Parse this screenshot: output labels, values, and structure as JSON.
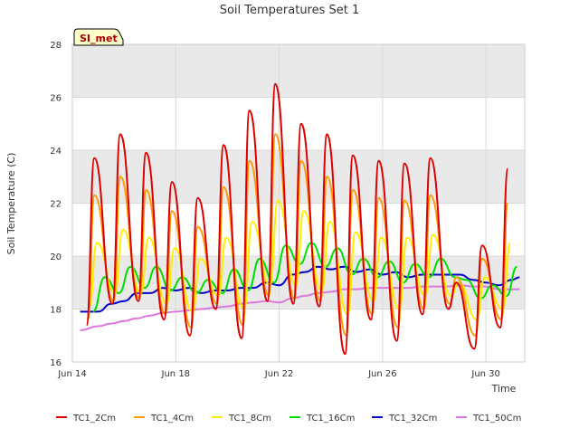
{
  "chart_data": {
    "type": "line",
    "title": "Soil Temperatures Set 1",
    "site_badge": "SI_met",
    "xlabel": "Time",
    "ylabel": "Soil Temperature (C)",
    "ylim": [
      16,
      28
    ],
    "xlim_days": [
      14,
      31.5
    ],
    "x_unit": "day of June",
    "y_ticks": [
      16,
      18,
      20,
      22,
      24,
      26,
      28
    ],
    "x_ticks": [
      {
        "day": 14,
        "label": "Jun 14"
      },
      {
        "day": 18,
        "label": "Jun 18"
      },
      {
        "day": 22,
        "label": "Jun 22"
      },
      {
        "day": 26,
        "label": "Jun 26"
      },
      {
        "day": 30,
        "label": "Jun 30"
      }
    ],
    "background": "alternating grey horizontal bands",
    "legend_position": "bottom",
    "colors": {
      "TC1_2Cm": "#dd0000",
      "TC1_4Cm": "#ff9900",
      "TC1_8Cm": "#ffee00",
      "TC1_16Cm": "#00dd00",
      "TC1_32Cm": "#0000cc",
      "TC1_50Cm": "#dd77dd"
    },
    "series": [
      {
        "name": "TC1_2Cm",
        "note": "daily maxima and minima (approx.)",
        "max": [
          {
            "x": 14.85,
            "y": 23.7
          },
          {
            "x": 15.85,
            "y": 24.6
          },
          {
            "x": 16.85,
            "y": 23.9
          },
          {
            "x": 17.85,
            "y": 22.8
          },
          {
            "x": 18.85,
            "y": 22.2
          },
          {
            "x": 19.85,
            "y": 24.2
          },
          {
            "x": 20.85,
            "y": 25.5
          },
          {
            "x": 21.85,
            "y": 26.5
          },
          {
            "x": 22.85,
            "y": 25.0
          },
          {
            "x": 23.85,
            "y": 24.6
          },
          {
            "x": 24.85,
            "y": 23.8
          },
          {
            "x": 25.85,
            "y": 23.6
          },
          {
            "x": 26.85,
            "y": 23.5
          },
          {
            "x": 27.85,
            "y": 23.7
          },
          {
            "x": 28.85,
            "y": 19.0
          },
          {
            "x": 29.85,
            "y": 20.4
          },
          {
            "x": 30.85,
            "y": 23.3
          }
        ],
        "min": [
          {
            "x": 14.55,
            "y": 17.4
          },
          {
            "x": 15.55,
            "y": 18.2
          },
          {
            "x": 16.55,
            "y": 18.3
          },
          {
            "x": 17.55,
            "y": 17.6
          },
          {
            "x": 18.55,
            "y": 17.0
          },
          {
            "x": 19.55,
            "y": 18.0
          },
          {
            "x": 20.55,
            "y": 16.9
          },
          {
            "x": 21.55,
            "y": 18.3
          },
          {
            "x": 22.55,
            "y": 18.2
          },
          {
            "x": 23.55,
            "y": 18.1
          },
          {
            "x": 24.55,
            "y": 16.3
          },
          {
            "x": 25.55,
            "y": 17.6
          },
          {
            "x": 26.55,
            "y": 16.8
          },
          {
            "x": 27.55,
            "y": 17.8
          },
          {
            "x": 28.55,
            "y": 18.0
          },
          {
            "x": 29.55,
            "y": 16.5
          },
          {
            "x": 30.55,
            "y": 17.3
          }
        ]
      },
      {
        "name": "TC1_4Cm",
        "note": "daily maxima and minima (approx.)",
        "max": [
          {
            "x": 14.85,
            "y": 22.3
          },
          {
            "x": 15.85,
            "y": 23.0
          },
          {
            "x": 16.85,
            "y": 22.5
          },
          {
            "x": 17.85,
            "y": 21.7
          },
          {
            "x": 18.85,
            "y": 21.1
          },
          {
            "x": 19.85,
            "y": 22.6
          },
          {
            "x": 20.85,
            "y": 23.6
          },
          {
            "x": 21.85,
            "y": 24.6
          },
          {
            "x": 22.85,
            "y": 23.6
          },
          {
            "x": 23.85,
            "y": 23.0
          },
          {
            "x": 24.85,
            "y": 22.5
          },
          {
            "x": 25.85,
            "y": 22.2
          },
          {
            "x": 26.85,
            "y": 22.1
          },
          {
            "x": 27.85,
            "y": 22.3
          },
          {
            "x": 28.85,
            "y": 19.2
          },
          {
            "x": 29.85,
            "y": 19.9
          },
          {
            "x": 30.85,
            "y": 22.0
          }
        ],
        "min": [
          {
            "x": 14.6,
            "y": 17.6
          },
          {
            "x": 15.6,
            "y": 18.3
          },
          {
            "x": 16.6,
            "y": 18.4
          },
          {
            "x": 17.6,
            "y": 17.8
          },
          {
            "x": 18.6,
            "y": 17.3
          },
          {
            "x": 19.6,
            "y": 18.2
          },
          {
            "x": 20.6,
            "y": 17.4
          },
          {
            "x": 21.6,
            "y": 18.5
          },
          {
            "x": 22.6,
            "y": 18.4
          },
          {
            "x": 23.6,
            "y": 18.3
          },
          {
            "x": 24.6,
            "y": 17.0
          },
          {
            "x": 25.6,
            "y": 17.8
          },
          {
            "x": 26.6,
            "y": 17.3
          },
          {
            "x": 27.6,
            "y": 18.0
          },
          {
            "x": 28.6,
            "y": 18.2
          },
          {
            "x": 29.6,
            "y": 17.0
          },
          {
            "x": 30.6,
            "y": 17.6
          }
        ]
      },
      {
        "name": "TC1_8Cm",
        "note": "daily maxima and minima (approx.)",
        "max": [
          {
            "x": 14.95,
            "y": 20.5
          },
          {
            "x": 15.95,
            "y": 21.0
          },
          {
            "x": 16.95,
            "y": 20.7
          },
          {
            "x": 17.95,
            "y": 20.3
          },
          {
            "x": 18.95,
            "y": 19.9
          },
          {
            "x": 19.95,
            "y": 20.7
          },
          {
            "x": 20.95,
            "y": 21.3
          },
          {
            "x": 21.95,
            "y": 22.1
          },
          {
            "x": 22.95,
            "y": 21.7
          },
          {
            "x": 23.95,
            "y": 21.3
          },
          {
            "x": 24.95,
            "y": 20.9
          },
          {
            "x": 25.95,
            "y": 20.7
          },
          {
            "x": 26.95,
            "y": 20.7
          },
          {
            "x": 27.95,
            "y": 20.8
          },
          {
            "x": 28.95,
            "y": 19.0
          },
          {
            "x": 29.95,
            "y": 19.2
          },
          {
            "x": 30.95,
            "y": 20.5
          }
        ],
        "min": [
          {
            "x": 14.65,
            "y": 18.1
          },
          {
            "x": 15.65,
            "y": 18.6
          },
          {
            "x": 16.65,
            "y": 18.6
          },
          {
            "x": 17.65,
            "y": 18.2
          },
          {
            "x": 18.65,
            "y": 17.9
          },
          {
            "x": 19.65,
            "y": 18.5
          },
          {
            "x": 20.65,
            "y": 18.0
          },
          {
            "x": 21.65,
            "y": 18.9
          },
          {
            "x": 22.65,
            "y": 18.9
          },
          {
            "x": 23.65,
            "y": 18.7
          },
          {
            "x": 24.65,
            "y": 17.8
          },
          {
            "x": 25.65,
            "y": 18.3
          },
          {
            "x": 26.65,
            "y": 18.0
          },
          {
            "x": 27.65,
            "y": 18.5
          },
          {
            "x": 28.65,
            "y": 18.5
          },
          {
            "x": 29.65,
            "y": 17.6
          },
          {
            "x": 30.65,
            "y": 18.0
          }
        ]
      },
      {
        "name": "TC1_16Cm",
        "note": "daily maxima and minima (approx.)",
        "max": [
          {
            "x": 15.25,
            "y": 19.2
          },
          {
            "x": 16.25,
            "y": 19.6
          },
          {
            "x": 17.25,
            "y": 19.6
          },
          {
            "x": 18.25,
            "y": 19.2
          },
          {
            "x": 19.25,
            "y": 19.1
          },
          {
            "x": 20.25,
            "y": 19.5
          },
          {
            "x": 21.25,
            "y": 19.9
          },
          {
            "x": 22.25,
            "y": 20.4
          },
          {
            "x": 23.25,
            "y": 20.5
          },
          {
            "x": 24.25,
            "y": 20.3
          },
          {
            "x": 25.25,
            "y": 19.9
          },
          {
            "x": 26.25,
            "y": 19.8
          },
          {
            "x": 27.25,
            "y": 19.7
          },
          {
            "x": 28.25,
            "y": 19.9
          },
          {
            "x": 29.25,
            "y": 19.1
          },
          {
            "x": 30.25,
            "y": 18.9
          },
          {
            "x": 31.2,
            "y": 19.6
          }
        ],
        "min": [
          {
            "x": 14.8,
            "y": 17.9
          },
          {
            "x": 15.8,
            "y": 18.6
          },
          {
            "x": 16.8,
            "y": 18.8
          },
          {
            "x": 17.8,
            "y": 18.7
          },
          {
            "x": 18.8,
            "y": 18.6
          },
          {
            "x": 19.8,
            "y": 18.6
          },
          {
            "x": 20.8,
            "y": 18.7
          },
          {
            "x": 21.8,
            "y": 19.0
          },
          {
            "x": 22.8,
            "y": 19.7
          },
          {
            "x": 23.8,
            "y": 19.6
          },
          {
            "x": 24.8,
            "y": 19.3
          },
          {
            "x": 25.8,
            "y": 19.2
          },
          {
            "x": 26.8,
            "y": 19.0
          },
          {
            "x": 27.8,
            "y": 19.2
          },
          {
            "x": 28.8,
            "y": 19.2
          },
          {
            "x": 29.8,
            "y": 18.4
          },
          {
            "x": 30.8,
            "y": 18.5
          }
        ]
      },
      {
        "name": "TC1_32Cm",
        "points": [
          {
            "x": 14.3,
            "y": 17.9
          },
          {
            "x": 15.0,
            "y": 17.9
          },
          {
            "x": 15.5,
            "y": 18.2
          },
          {
            "x": 16.0,
            "y": 18.3
          },
          {
            "x": 16.5,
            "y": 18.6
          },
          {
            "x": 17.0,
            "y": 18.6
          },
          {
            "x": 17.5,
            "y": 18.8
          },
          {
            "x": 18.0,
            "y": 18.7
          },
          {
            "x": 18.5,
            "y": 18.8
          },
          {
            "x": 19.0,
            "y": 18.6
          },
          {
            "x": 19.5,
            "y": 18.7
          },
          {
            "x": 20.0,
            "y": 18.7
          },
          {
            "x": 20.5,
            "y": 18.8
          },
          {
            "x": 21.0,
            "y": 18.8
          },
          {
            "x": 21.5,
            "y": 19.0
          },
          {
            "x": 22.0,
            "y": 18.9
          },
          {
            "x": 22.5,
            "y": 19.3
          },
          {
            "x": 23.0,
            "y": 19.4
          },
          {
            "x": 23.5,
            "y": 19.6
          },
          {
            "x": 24.0,
            "y": 19.5
          },
          {
            "x": 24.5,
            "y": 19.6
          },
          {
            "x": 25.0,
            "y": 19.4
          },
          {
            "x": 25.5,
            "y": 19.5
          },
          {
            "x": 26.0,
            "y": 19.3
          },
          {
            "x": 26.5,
            "y": 19.4
          },
          {
            "x": 27.0,
            "y": 19.2
          },
          {
            "x": 27.5,
            "y": 19.3
          },
          {
            "x": 28.0,
            "y": 19.3
          },
          {
            "x": 28.5,
            "y": 19.3
          },
          {
            "x": 29.0,
            "y": 19.3
          },
          {
            "x": 29.5,
            "y": 19.1
          },
          {
            "x": 30.0,
            "y": 19.0
          },
          {
            "x": 30.5,
            "y": 18.9
          },
          {
            "x": 31.0,
            "y": 19.1
          },
          {
            "x": 31.3,
            "y": 19.2
          }
        ]
      },
      {
        "name": "TC1_50Cm",
        "points": [
          {
            "x": 14.3,
            "y": 17.2
          },
          {
            "x": 15.0,
            "y": 17.35
          },
          {
            "x": 15.5,
            "y": 17.45
          },
          {
            "x": 16.0,
            "y": 17.55
          },
          {
            "x": 16.5,
            "y": 17.65
          },
          {
            "x": 17.0,
            "y": 17.75
          },
          {
            "x": 17.5,
            "y": 17.85
          },
          {
            "x": 18.0,
            "y": 17.9
          },
          {
            "x": 18.5,
            "y": 17.95
          },
          {
            "x": 19.0,
            "y": 18.0
          },
          {
            "x": 19.5,
            "y": 18.05
          },
          {
            "x": 20.0,
            "y": 18.1
          },
          {
            "x": 20.5,
            "y": 18.2
          },
          {
            "x": 21.0,
            "y": 18.25
          },
          {
            "x": 21.5,
            "y": 18.3
          },
          {
            "x": 22.0,
            "y": 18.25
          },
          {
            "x": 22.5,
            "y": 18.4
          },
          {
            "x": 23.0,
            "y": 18.5
          },
          {
            "x": 23.5,
            "y": 18.6
          },
          {
            "x": 24.0,
            "y": 18.65
          },
          {
            "x": 24.5,
            "y": 18.75
          },
          {
            "x": 25.0,
            "y": 18.75
          },
          {
            "x": 25.5,
            "y": 18.8
          },
          {
            "x": 26.0,
            "y": 18.8
          },
          {
            "x": 26.5,
            "y": 18.8
          },
          {
            "x": 27.0,
            "y": 18.8
          },
          {
            "x": 27.5,
            "y": 18.85
          },
          {
            "x": 28.0,
            "y": 18.85
          },
          {
            "x": 28.5,
            "y": 18.85
          },
          {
            "x": 29.0,
            "y": 18.9
          },
          {
            "x": 29.5,
            "y": 18.85
          },
          {
            "x": 30.0,
            "y": 18.85
          },
          {
            "x": 30.5,
            "y": 18.75
          },
          {
            "x": 31.0,
            "y": 18.75
          },
          {
            "x": 31.3,
            "y": 18.75
          }
        ]
      }
    ]
  }
}
